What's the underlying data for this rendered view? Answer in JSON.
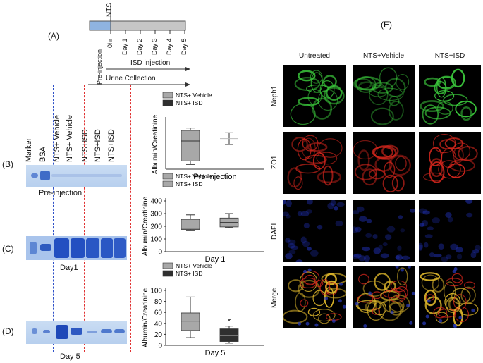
{
  "figure": {
    "panel_a": {
      "letter": "(A)",
      "timeline_top_label": "NTS",
      "timepoints": [
        "Pre-injection",
        "0hr",
        "Day 1",
        "Day 2",
        "Day 3",
        "Day 4",
        "Day 5"
      ],
      "arrow_isd": "ISD injection",
      "arrow_urine": "Urine Collection"
    },
    "gel": {
      "lane_labels": [
        "Marker",
        "BSA",
        "NTS+ Vehicle",
        "NTS+ Vehicle",
        "NTS+ISD",
        "NTS+ISD",
        "NTS+ISD"
      ],
      "row_letters": [
        "(B)",
        "(C)",
        "(D)"
      ],
      "row_captions": [
        "Pre-injection",
        "Day1",
        "Day 5"
      ]
    },
    "panel_e": {
      "letter": "(E)",
      "columns": [
        "Untreated",
        "NTS+Vehicle",
        "NTS+ISD"
      ],
      "rows": [
        "Neph1",
        "ZO1",
        "DAPI",
        "Merge"
      ],
      "colors": {
        "neph1": "#39c23a",
        "zo1": "#e0281e",
        "dapi": "#1f2fb0",
        "merge": "#d8b22a"
      }
    }
  },
  "chart_data": [
    {
      "type": "box",
      "ylabel": "Albumin/Creatinine",
      "xlabel": "Pre-injection",
      "legend": [
        "NTS+ Vehicle",
        "NTS+ ISD"
      ],
      "legend_placement": "top-left",
      "yticks": [],
      "series": [
        {
          "name": "NTS+ Vehicle",
          "color": "#a8a8a8",
          "min": 0.2,
          "q1": 0.35,
          "median": 1.2,
          "q3": 1.65,
          "max": 1.75
        },
        {
          "name": "NTS+ ISD",
          "color": "#2f2f2f",
          "min": 1.05,
          "q1": 1.3,
          "median": 1.3,
          "q3": 1.3,
          "max": 1.55
        }
      ],
      "ylim": [
        0,
        2.1
      ],
      "annotation": ""
    },
    {
      "type": "box",
      "ylabel": "Albumin/Creatinine",
      "xlabel": "Day 1",
      "legend": [
        "NTS+ Vehicle",
        "NTS+ ISD"
      ],
      "legend_placement": "top-left",
      "yticks": [
        "0",
        "100",
        "200",
        "300",
        "400"
      ],
      "series": [
        {
          "name": "NTS+ Vehicle",
          "color": "#a8a8a8",
          "min": 165,
          "q1": 175,
          "median": 185,
          "q3": 255,
          "max": 290
        },
        {
          "name": "NTS+ ISD",
          "color": "#a8a8a8",
          "min": 190,
          "q1": 195,
          "median": 230,
          "q3": 265,
          "max": 300
        }
      ],
      "ylim": [
        0,
        400
      ],
      "annotation": ""
    },
    {
      "type": "box",
      "ylabel": "Albumin/Creatinine",
      "xlabel": "Day 5",
      "legend": [
        "NTS+ Vehicle",
        "NTS+ ISD"
      ],
      "legend_placement": "top-left",
      "yticks": [
        "0",
        "20",
        "40",
        "60",
        "80",
        "100"
      ],
      "series": [
        {
          "name": "NTS+ Vehicle",
          "color": "#a8a8a8",
          "min": 14,
          "q1": 27,
          "median": 44,
          "q3": 59,
          "max": 88
        },
        {
          "name": "NTS+ ISD",
          "color": "#2f2f2f",
          "min": 4,
          "q1": 7,
          "median": 18,
          "q3": 30,
          "max": 35
        }
      ],
      "ylim": [
        0,
        100
      ],
      "annotation": "*"
    }
  ]
}
